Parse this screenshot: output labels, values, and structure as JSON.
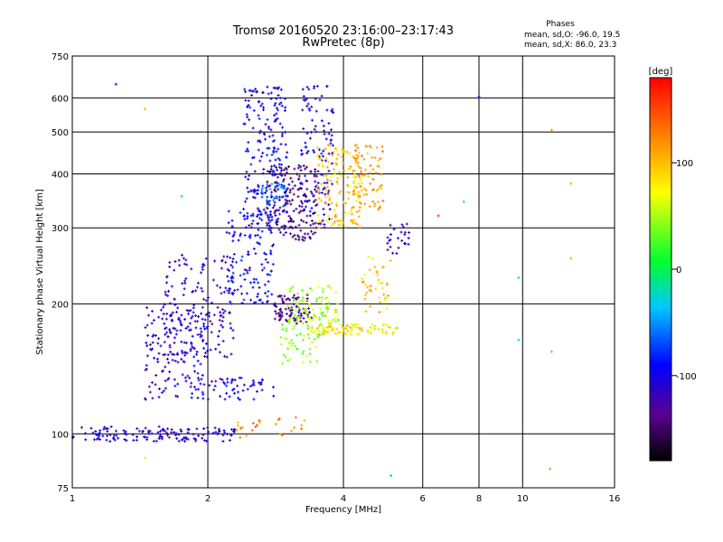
{
  "title_line1": "Tromsø 20160520 23:16:00–23:17:43",
  "title_line2": "RwPretec (8p)",
  "stats": {
    "header": "Phases",
    "line1": "mean, sd,O: -96.0, 19.5",
    "line2": "mean, sd,X:  86.0, 23.3"
  },
  "chart_data": {
    "type": "scatter",
    "title": "Tromsø 20160520 23:16:00–23:17:43",
    "subtitle": "RwPretec (8p)",
    "xlabel": "Frequency [MHz]",
    "ylabel": "Stationary phase Virtual Height [km]",
    "xscale": "log",
    "yscale": "log",
    "xlim": [
      1,
      16
    ],
    "ylim": [
      75,
      750
    ],
    "xticks": [
      1,
      2,
      4,
      6,
      8,
      10,
      16
    ],
    "xtick_labels": [
      "1",
      "2",
      "4",
      "6",
      "8",
      "10",
      "16"
    ],
    "yticks": [
      75,
      100,
      200,
      300,
      400,
      500,
      600,
      750
    ],
    "ytick_labels": [
      "75",
      "100",
      "200",
      "300",
      "400",
      "500",
      "600",
      "750"
    ],
    "grid": true,
    "colorbar": {
      "label": "[deg]",
      "range": [
        -180,
        180
      ],
      "ticks": [
        100,
        0,
        -100
      ],
      "tick_labels": [
        "100",
        "0",
        "-100"
      ],
      "colormap": "rainbow"
    },
    "clusters": [
      {
        "x": [
          1.0,
          1.75
        ],
        "y": [
          96,
          104
        ],
        "phase": -110,
        "n": 90
      },
      {
        "x": [
          1.75,
          2.3
        ],
        "y": [
          96,
          104
        ],
        "phase": -105,
        "n": 45
      },
      {
        "x": [
          1.45,
          2.0
        ],
        "y": [
          120,
          200
        ],
        "phase": -110,
        "n": 160
      },
      {
        "x": [
          1.6,
          2.3
        ],
        "y": [
          150,
          260
        ],
        "phase": -115,
        "n": 150
      },
      {
        "x": [
          2.0,
          2.8
        ],
        "y": [
          120,
          135
        ],
        "phase": -105,
        "n": 50
      },
      {
        "x": [
          2.2,
          2.8
        ],
        "y": [
          200,
          330
        ],
        "phase": -95,
        "n": 130
      },
      {
        "x": [
          2.4,
          3.0
        ],
        "y": [
          300,
          640
        ],
        "phase": -100,
        "n": 200
      },
      {
        "x": [
          2.6,
          3.0
        ],
        "y": [
          330,
          380
        ],
        "phase": -60,
        "n": 40
      },
      {
        "x": [
          2.7,
          3.5
        ],
        "y": [
          280,
          420
        ],
        "phase": -140,
        "n": 160
      },
      {
        "x": [
          2.8,
          3.4
        ],
        "y": [
          180,
          210
        ],
        "phase": -140,
        "n": 80
      },
      {
        "x": [
          3.2,
          3.8
        ],
        "y": [
          300,
          640
        ],
        "phase": -105,
        "n": 120
      },
      {
        "x": [
          3.0,
          3.9
        ],
        "y": [
          180,
          220
        ],
        "phase": 50,
        "n": 90
      },
      {
        "x": [
          3.4,
          4.4
        ],
        "y": [
          170,
          180
        ],
        "phase": 80,
        "n": 70
      },
      {
        "x": [
          2.9,
          3.6
        ],
        "y": [
          145,
          180
        ],
        "phase": 45,
        "n": 50
      },
      {
        "x": [
          3.5,
          4.4
        ],
        "y": [
          300,
          470
        ],
        "phase": 95,
        "n": 140
      },
      {
        "x": [
          4.2,
          4.9
        ],
        "y": [
          330,
          470
        ],
        "phase": 110,
        "n": 80
      },
      {
        "x": [
          4.4,
          5.1
        ],
        "y": [
          190,
          260
        ],
        "phase": 95,
        "n": 40
      },
      {
        "x": [
          5.0,
          5.6
        ],
        "y": [
          260,
          310
        ],
        "phase": -115,
        "n": 25
      },
      {
        "x": [
          4.5,
          5.3
        ],
        "y": [
          170,
          180
        ],
        "phase": 70,
        "n": 25
      },
      {
        "x": [
          2.3,
          3.3
        ],
        "y": [
          97,
          110
        ],
        "phase": 120,
        "n": 25
      }
    ],
    "outliers": [
      {
        "x": 1.25,
        "y": 645,
        "phase": -110
      },
      {
        "x": 1.45,
        "y": 565,
        "phase": 110
      },
      {
        "x": 1.75,
        "y": 355,
        "phase": -20
      },
      {
        "x": 1.45,
        "y": 88,
        "phase": 60
      },
      {
        "x": 6.5,
        "y": 320,
        "phase": 160
      },
      {
        "x": 7.4,
        "y": 345,
        "phase": -20
      },
      {
        "x": 8.0,
        "y": 605,
        "phase": -100
      },
      {
        "x": 9.8,
        "y": 230,
        "phase": -30
      },
      {
        "x": 9.8,
        "y": 165,
        "phase": -30
      },
      {
        "x": 11.6,
        "y": 505,
        "phase": 120
      },
      {
        "x": 11.6,
        "y": 155,
        "phase": 120
      },
      {
        "x": 12.8,
        "y": 380,
        "phase": 110
      },
      {
        "x": 12.8,
        "y": 255,
        "phase": 110
      },
      {
        "x": 5.1,
        "y": 80,
        "phase": -40
      },
      {
        "x": 11.5,
        "y": 83,
        "phase": 120
      }
    ]
  }
}
